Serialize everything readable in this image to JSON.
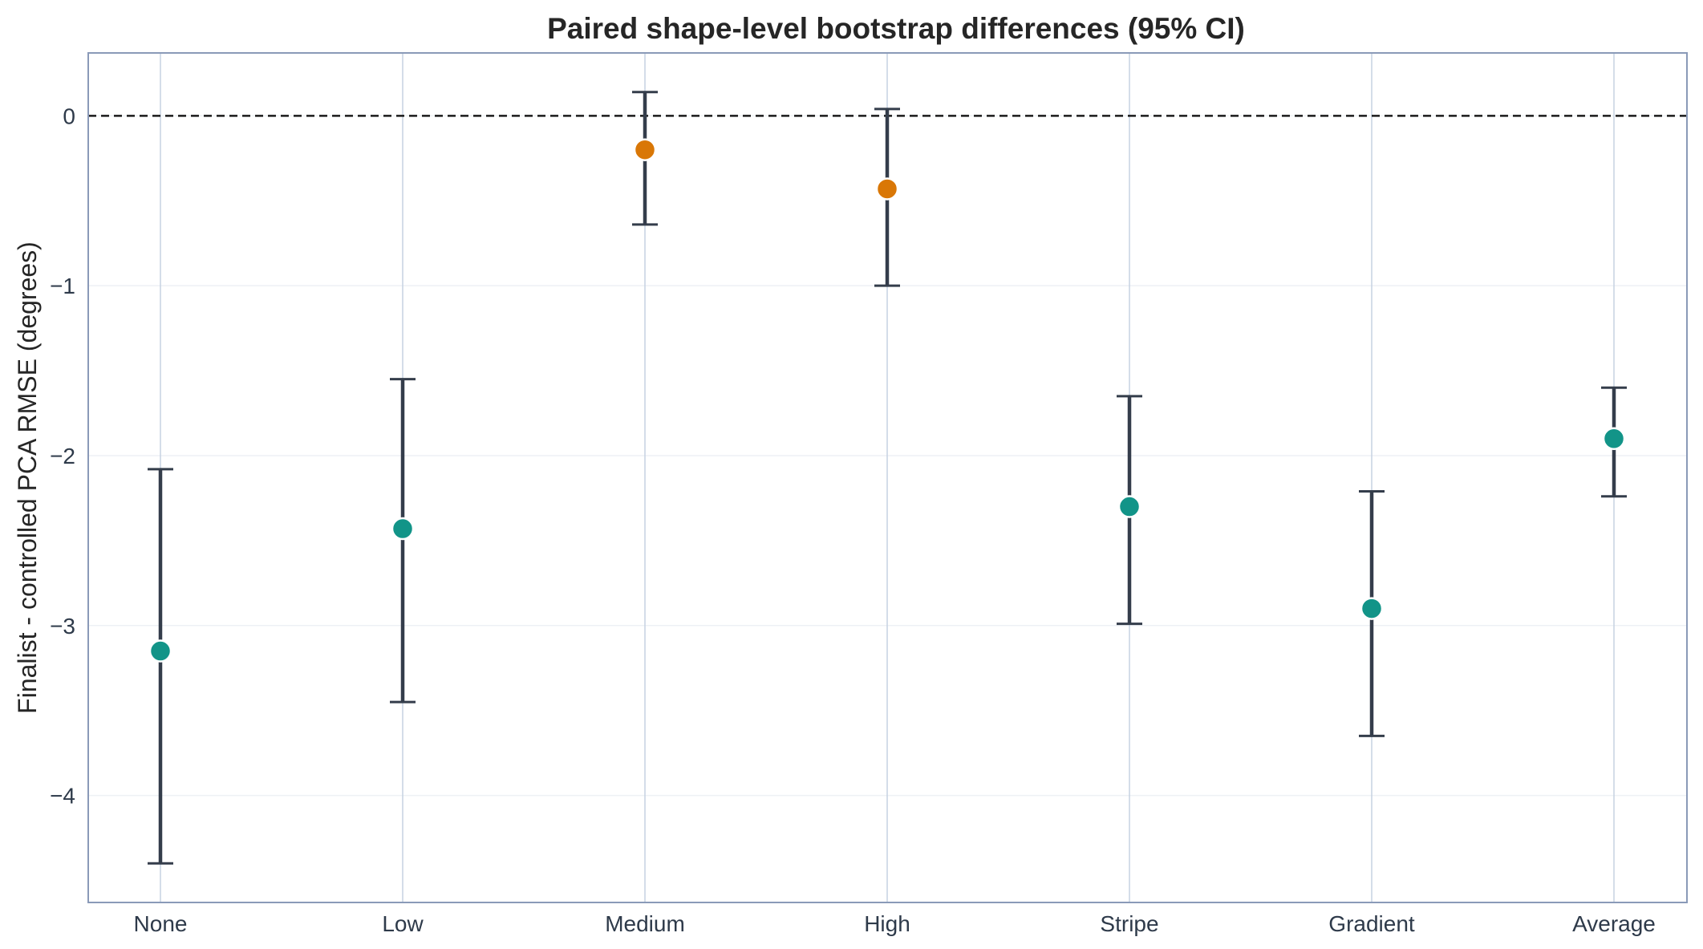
{
  "chart_data": {
    "type": "scatter",
    "title": "Paired shape-level bootstrap differences (95% CI)",
    "xlabel": "",
    "ylabel": "Finalist - controlled PCA RMSE (degrees)",
    "categories": [
      "None",
      "Low",
      "Medium",
      "High",
      "Stripe",
      "Gradient",
      "Average"
    ],
    "points": [
      {
        "category": "None",
        "value": -3.15,
        "ci_low": -4.4,
        "ci_high": -2.08,
        "color": "#129488"
      },
      {
        "category": "Low",
        "value": -2.43,
        "ci_low": -3.45,
        "ci_high": -1.55,
        "color": "#129488"
      },
      {
        "category": "Medium",
        "value": -0.2,
        "ci_low": -0.64,
        "ci_high": 0.14,
        "color": "#d97706"
      },
      {
        "category": "High",
        "value": -0.43,
        "ci_low": -1.0,
        "ci_high": 0.04,
        "color": "#d97706"
      },
      {
        "category": "Stripe",
        "value": -2.3,
        "ci_low": -2.99,
        "ci_high": -1.65,
        "color": "#129488"
      },
      {
        "category": "Gradient",
        "value": -2.9,
        "ci_low": -3.65,
        "ci_high": -2.21,
        "color": "#129488"
      },
      {
        "category": "Average",
        "value": -1.9,
        "ci_low": -2.24,
        "ci_high": -1.6,
        "color": "#129488"
      }
    ],
    "reference_line": 0,
    "ylim": [
      -4.63,
      0.37
    ],
    "yticks": [
      0,
      -1,
      -2,
      -3,
      -4
    ],
    "ytick_labels": [
      "0",
      "−1",
      "−2",
      "−3",
      "−4"
    ],
    "grid": true,
    "colors": {
      "improve": "#129488",
      "neutral": "#d97706",
      "errorbar": "#343d4b",
      "frame": "#8a9ab8",
      "vgrid": "#c6d2e2",
      "hgrid": "#eef1f5"
    }
  }
}
